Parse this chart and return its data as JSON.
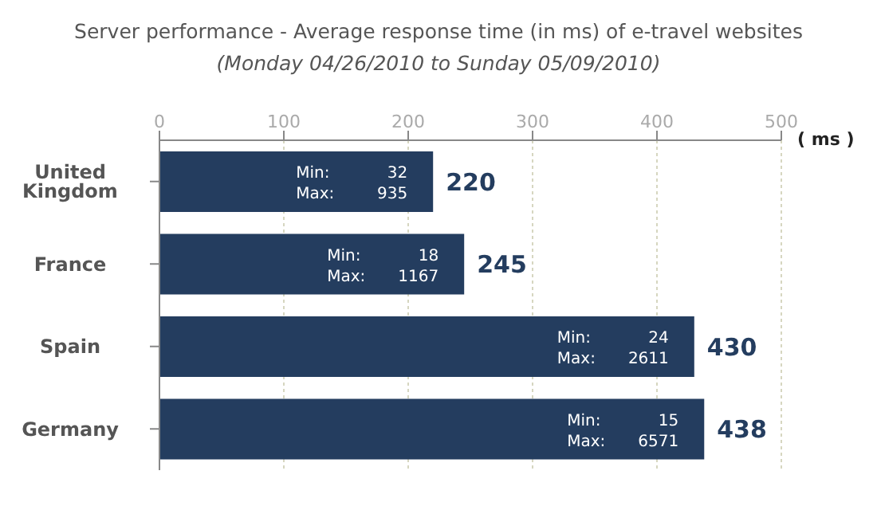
{
  "chart_data": {
    "type": "bar",
    "orientation": "horizontal",
    "title": "Server performance  - Average response time (in ms) of e-travel websites",
    "subtitle": "(Monday 04/26/2010 to Sunday 05/09/2010)",
    "xlabel": "( ms )",
    "categories": [
      "United Kingdom",
      "France",
      "Spain",
      "Germany"
    ],
    "values": [
      220,
      245,
      430,
      438
    ],
    "color": "#243d5f",
    "xlim": [
      0,
      500
    ],
    "xticks": [
      0,
      100,
      200,
      300,
      400,
      500
    ],
    "grid": "x",
    "data_labels": true,
    "legend": false,
    "annotations": [
      "Min:",
      "32",
      "Max:",
      "935",
      "Min:",
      "18",
      "Max:",
      "1167",
      "Min:",
      "24",
      "Max:",
      "2611",
      "Min:",
      "15",
      "Max:",
      "6571"
    ]
  }
}
